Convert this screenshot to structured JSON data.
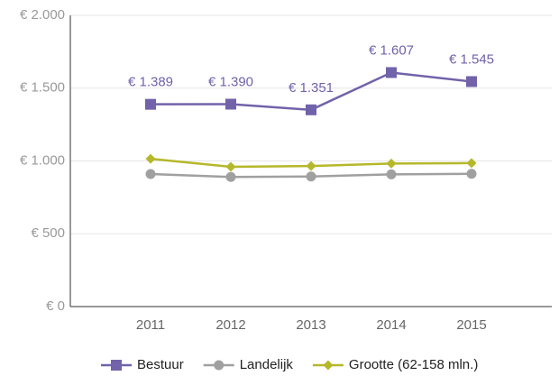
{
  "chart_data": {
    "type": "line",
    "categories": [
      "2011",
      "2012",
      "2013",
      "2014",
      "2015"
    ],
    "series": [
      {
        "name": "Bestuur",
        "color": "#7262aa",
        "marker": "square",
        "values": [
          1389,
          1390,
          1351,
          1607,
          1545
        ],
        "value_labels": [
          "€ 1.389",
          "€ 1.390",
          "€ 1.351",
          "€ 1.607",
          "€ 1.545"
        ]
      },
      {
        "name": "Landelijk",
        "color": "#a0a0a0",
        "marker": "circle",
        "values": [
          910,
          890,
          893,
          908,
          912
        ]
      },
      {
        "name": "Grootte (62-158 mln.)",
        "color": "#b5b82a",
        "marker": "diamond",
        "values": [
          1015,
          960,
          965,
          982,
          985
        ]
      }
    ],
    "ylim": [
      0,
      2000
    ],
    "yticks": [
      {
        "value": 0,
        "label": "€ 0"
      },
      {
        "value": 500,
        "label": "€ 500"
      },
      {
        "value": 1000,
        "label": "€ 1.000"
      },
      {
        "value": 1500,
        "label": "€ 1.500"
      },
      {
        "value": 2000,
        "label": "€ 2.000"
      }
    ],
    "grid": true,
    "legend": "bottom"
  }
}
